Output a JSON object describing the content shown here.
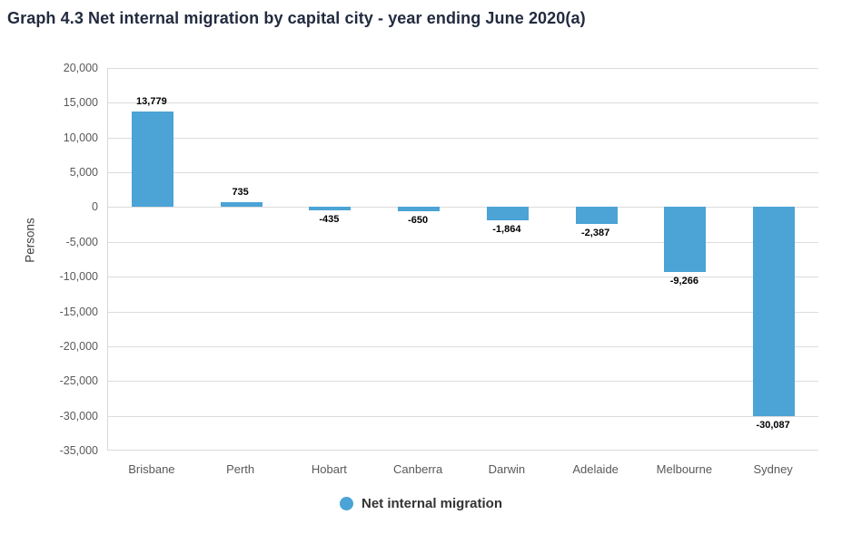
{
  "title": "Graph 4.3 Net internal migration by capital city - year ending June 2020(a)",
  "colors": {
    "bar": "#4BA3D6",
    "title": "#222B3F",
    "axis_text": "#595959",
    "y_axis_title_text": "#404040",
    "grid": "#DCDCDC",
    "value_label": "#000000",
    "legend_text": "#333333"
  },
  "legend": {
    "label": "Net internal migration"
  },
  "y_axis_title": "Persons",
  "chart_data": {
    "type": "bar",
    "title": "Graph 4.3 Net internal migration by capital city - year ending June 2020(a)",
    "xlabel": "",
    "ylabel": "Persons",
    "ylim": [
      -35000,
      20000
    ],
    "grid": true,
    "legend_position": "bottom",
    "series_name": "Net internal migration",
    "categories": [
      "Brisbane",
      "Perth",
      "Hobart",
      "Canberra",
      "Darwin",
      "Adelaide",
      "Melbourne",
      "Sydney"
    ],
    "values": [
      13779,
      735,
      -435,
      -650,
      -1864,
      -2387,
      -9266,
      -30087
    ],
    "value_labels": [
      "13,779",
      "735",
      "-435",
      "-650",
      "-1,864",
      "-2,387",
      "-9,266",
      "-30,087"
    ],
    "yticks": [
      {
        "value": 20000,
        "label": "20,000"
      },
      {
        "value": 15000,
        "label": "15,000"
      },
      {
        "value": 10000,
        "label": "10,000"
      },
      {
        "value": 5000,
        "label": "5,000"
      },
      {
        "value": 0,
        "label": "0"
      },
      {
        "value": -5000,
        "label": "-5,000"
      },
      {
        "value": -10000,
        "label": "-10,000"
      },
      {
        "value": -15000,
        "label": "-15,000"
      },
      {
        "value": -20000,
        "label": "-20,000"
      },
      {
        "value": -25000,
        "label": "-25,000"
      },
      {
        "value": -30000,
        "label": "-30,000"
      },
      {
        "value": -35000,
        "label": "-35,000"
      }
    ]
  }
}
